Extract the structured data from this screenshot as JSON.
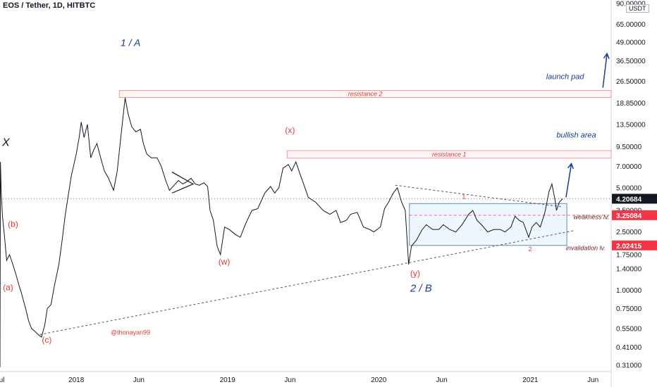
{
  "header": {
    "title": "EOS / Tether, 1D, HITBTC"
  },
  "currency_badge": "USDT",
  "chart_data": {
    "type": "line",
    "title": "EOS / Tether, 1D, HITBTC",
    "y_scale": "log",
    "ylim": [
      0.28,
      95
    ],
    "xlim": [
      "2017-07-01",
      "2021-07-15"
    ],
    "y_ticks": [
      "90.00000",
      "65.00000",
      "49.00000",
      "36.50000",
      "26.50000",
      "18.85000",
      "13.50000",
      "9.50000",
      "7.00000",
      "5.00000",
      "3.50000",
      "2.50000",
      "1.75000",
      "1.40000",
      "1.00000",
      "0.75000",
      "0.55000",
      "0.41000",
      "0.31000"
    ],
    "x_ticks": [
      {
        "label": "Jul",
        "date": "2017-07-01"
      },
      {
        "label": "2018",
        "date": "2018-01-01"
      },
      {
        "label": "Jun",
        "date": "2018-06-01"
      },
      {
        "label": "2019",
        "date": "2019-01-01"
      },
      {
        "label": "Jun",
        "date": "2019-06-01"
      },
      {
        "label": "2020",
        "date": "2020-01-01"
      },
      {
        "label": "Jun",
        "date": "2020-06-01"
      },
      {
        "label": "2021",
        "date": "2021-01-01"
      },
      {
        "label": "Jun",
        "date": "2021-06-01"
      }
    ],
    "series": [
      {
        "points": [
          [
            "2017-07-01",
            0.3
          ],
          [
            "2017-07-02",
            7.5
          ],
          [
            "2017-07-04",
            4.6
          ],
          [
            "2017-07-07",
            3.2
          ],
          [
            "2017-07-12",
            2.3
          ],
          [
            "2017-07-17",
            1.6
          ],
          [
            "2017-07-24",
            1.75
          ],
          [
            "2017-08-01",
            1.5
          ],
          [
            "2017-08-08",
            1.3
          ],
          [
            "2017-08-15",
            1.1
          ],
          [
            "2017-08-22",
            0.95
          ],
          [
            "2017-09-01",
            0.75
          ],
          [
            "2017-09-08",
            0.62
          ],
          [
            "2017-09-15",
            0.55
          ],
          [
            "2017-09-22",
            0.53
          ],
          [
            "2017-10-01",
            0.5
          ],
          [
            "2017-10-09",
            0.48
          ],
          [
            "2017-10-17",
            0.58
          ],
          [
            "2017-10-23",
            0.75
          ],
          [
            "2017-11-01",
            0.8
          ],
          [
            "2017-11-10",
            1.1
          ],
          [
            "2017-11-20",
            1.5
          ],
          [
            "2017-11-28",
            2.2
          ],
          [
            "2017-12-05",
            3.2
          ],
          [
            "2017-12-12",
            4.3
          ],
          [
            "2017-12-20",
            6.0
          ],
          [
            "2018-01-01",
            8.5
          ],
          [
            "2018-01-08",
            11.0
          ],
          [
            "2018-01-13",
            14.0
          ],
          [
            "2018-01-20",
            11.0
          ],
          [
            "2018-01-28",
            13.5
          ],
          [
            "2018-02-05",
            8.0
          ],
          [
            "2018-02-12",
            9.0
          ],
          [
            "2018-02-20",
            10.0
          ],
          [
            "2018-03-01",
            8.0
          ],
          [
            "2018-03-10",
            6.5
          ],
          [
            "2018-03-20",
            5.8
          ],
          [
            "2018-04-01",
            4.8
          ],
          [
            "2018-04-10",
            6.5
          ],
          [
            "2018-04-20",
            12.0
          ],
          [
            "2018-04-29",
            20.5
          ],
          [
            "2018-05-06",
            16.0
          ],
          [
            "2018-05-15",
            13.0
          ],
          [
            "2018-05-25",
            12.0
          ],
          [
            "2018-06-05",
            12.5
          ],
          [
            "2018-06-12",
            10.0
          ],
          [
            "2018-06-20",
            8.5
          ],
          [
            "2018-07-01",
            8.0
          ],
          [
            "2018-07-15",
            8.0
          ],
          [
            "2018-07-25",
            7.0
          ],
          [
            "2018-08-05",
            5.6
          ],
          [
            "2018-08-14",
            4.8
          ],
          [
            "2018-08-25",
            5.2
          ],
          [
            "2018-09-05",
            5.6
          ],
          [
            "2018-09-15",
            5.3
          ],
          [
            "2018-09-25",
            5.5
          ],
          [
            "2018-10-05",
            5.8
          ],
          [
            "2018-10-15",
            5.3
          ],
          [
            "2018-10-25",
            5.2
          ],
          [
            "2018-11-05",
            5.4
          ],
          [
            "2018-11-14",
            5.1
          ],
          [
            "2018-11-20",
            3.5
          ],
          [
            "2018-11-28",
            3.0
          ],
          [
            "2018-12-07",
            2.0
          ],
          [
            "2018-12-15",
            1.75
          ],
          [
            "2018-12-25",
            2.7
          ],
          [
            "2019-01-05",
            2.6
          ],
          [
            "2019-01-20",
            2.4
          ],
          [
            "2019-02-01",
            2.3
          ],
          [
            "2019-02-15",
            2.9
          ],
          [
            "2019-03-01",
            3.5
          ],
          [
            "2019-03-15",
            3.6
          ],
          [
            "2019-04-01",
            4.6
          ],
          [
            "2019-04-15",
            5.1
          ],
          [
            "2019-04-25",
            4.6
          ],
          [
            "2019-05-05",
            5.0
          ],
          [
            "2019-05-15",
            6.8
          ],
          [
            "2019-05-28",
            7.2
          ],
          [
            "2019-06-05",
            6.5
          ],
          [
            "2019-06-15",
            7.5
          ],
          [
            "2019-06-25",
            6.2
          ],
          [
            "2019-07-05",
            5.2
          ],
          [
            "2019-07-15",
            4.3
          ],
          [
            "2019-08-01",
            4.0
          ],
          [
            "2019-08-20",
            3.5
          ],
          [
            "2019-09-05",
            3.3
          ],
          [
            "2019-09-20",
            3.5
          ],
          [
            "2019-10-01",
            2.9
          ],
          [
            "2019-10-15",
            3.0
          ],
          [
            "2019-10-25",
            3.3
          ],
          [
            "2019-11-10",
            3.4
          ],
          [
            "2019-11-25",
            2.7
          ],
          [
            "2019-12-10",
            2.6
          ],
          [
            "2019-12-20",
            2.5
          ],
          [
            "2020-01-05",
            2.7
          ],
          [
            "2020-01-15",
            3.6
          ],
          [
            "2020-01-25",
            4.0
          ],
          [
            "2020-02-05",
            4.6
          ],
          [
            "2020-02-15",
            5.0
          ],
          [
            "2020-02-25",
            4.0
          ],
          [
            "2020-03-05",
            3.5
          ],
          [
            "2020-03-12",
            1.7
          ],
          [
            "2020-03-13",
            1.5
          ],
          [
            "2020-03-20",
            2.0
          ],
          [
            "2020-04-01",
            2.2
          ],
          [
            "2020-04-15",
            2.6
          ],
          [
            "2020-04-25",
            2.8
          ],
          [
            "2020-05-10",
            2.6
          ],
          [
            "2020-05-25",
            2.6
          ],
          [
            "2020-06-05",
            2.8
          ],
          [
            "2020-06-20",
            2.6
          ],
          [
            "2020-07-05",
            2.5
          ],
          [
            "2020-07-20",
            2.8
          ],
          [
            "2020-08-05",
            3.3
          ],
          [
            "2020-08-15",
            3.5
          ],
          [
            "2020-08-25",
            3.0
          ],
          [
            "2020-09-05",
            2.8
          ],
          [
            "2020-09-20",
            2.5
          ],
          [
            "2020-10-05",
            2.6
          ],
          [
            "2020-10-20",
            2.6
          ],
          [
            "2020-11-01",
            2.5
          ],
          [
            "2020-11-15",
            2.7
          ],
          [
            "2020-11-25",
            3.2
          ],
          [
            "2020-12-05",
            3.0
          ],
          [
            "2020-12-15",
            2.9
          ],
          [
            "2020-12-28",
            2.3
          ],
          [
            "2021-01-05",
            2.7
          ],
          [
            "2021-01-15",
            2.9
          ],
          [
            "2021-01-25",
            2.7
          ],
          [
            "2021-02-05",
            3.4
          ],
          [
            "2021-02-15",
            4.7
          ],
          [
            "2021-02-22",
            5.3
          ],
          [
            "2021-03-01",
            4.2
          ],
          [
            "2021-03-05",
            3.5
          ],
          [
            "2021-03-12",
            4.0
          ],
          [
            "2021-03-20",
            4.2
          ]
        ]
      }
    ],
    "last_price": "4.20684",
    "price_labels": [
      {
        "value": 3.25084,
        "text": "3.25084"
      },
      {
        "value": 2.02415,
        "text": "2.02415"
      }
    ],
    "zones": [
      {
        "label": "resistance 2",
        "x0": "2018-04-15",
        "x1": "2021-07-15",
        "y0": 20.6,
        "y1": 23.0
      },
      {
        "label": "resistance 1",
        "x0": "2019-05-25",
        "x1": "2021-07-15",
        "y0": 7.95,
        "y1": 8.95
      }
    ],
    "box": {
      "x0": "2020-03-15",
      "x1": "2021-03-30",
      "y0": 2.02415,
      "y1": 3.9
    },
    "trendlines": [
      {
        "from": [
          "2017-10-05",
          0.5
        ],
        "to": [
          "2021-04-15",
          2.55
        ],
        "style": "dashed"
      },
      {
        "from": [
          "2020-02-10",
          5.2
        ],
        "to": [
          "2021-03-20",
          3.7
        ],
        "style": "dashed"
      },
      {
        "from": [
          "2020-03-15",
          3.25084
        ],
        "to": [
          "2021-07-15",
          3.25084
        ],
        "style": "dashed-red"
      }
    ],
    "triangle": [
      [
        "2018-08-20",
        6.4
      ],
      [
        "2018-10-10",
        5.3
      ],
      [
        "2018-08-20",
        4.6
      ]
    ],
    "arrows": [
      {
        "from": [
          "2021-03-28",
          4.3
        ],
        "to": [
          "2021-04-10",
          7.3
        ]
      },
      {
        "from": [
          "2021-06-25",
          24.0
        ],
        "to": [
          "2021-07-05",
          41.0
        ]
      }
    ],
    "annotations": [
      {
        "text": "X",
        "x": "2017-07-06",
        "y": 9.6,
        "color": "#131722",
        "style": "italic",
        "size": 16
      },
      {
        "text": "(b)",
        "x": "2017-07-20",
        "y": 2.7,
        "color": "#e53935",
        "style": "normal",
        "size": 12
      },
      {
        "text": "(a)",
        "x": "2017-07-08",
        "y": 1.0,
        "color": "#e53935",
        "style": "normal",
        "size": 12
      },
      {
        "text": "(c)",
        "x": "2017-10-10",
        "y": 0.44,
        "color": "#e53935",
        "style": "normal",
        "size": 12
      },
      {
        "text": "1 / A",
        "x": "2018-04-18",
        "y": 46.0,
        "color": "#1a3c8f",
        "style": "italic",
        "size": 14
      },
      {
        "text": "(w)",
        "x": "2018-12-10",
        "y": 1.5,
        "color": "#e53935",
        "style": "normal",
        "size": 12
      },
      {
        "text": "(x)",
        "x": "2019-05-20",
        "y": 11.8,
        "color": "#e53935",
        "style": "normal",
        "size": 12
      },
      {
        "text": "(y)",
        "x": "2020-03-17",
        "y": 1.25,
        "color": "#e53935",
        "style": "normal",
        "size": 12
      },
      {
        "text": "2 / B",
        "x": "2020-03-17",
        "y": 0.98,
        "color": "#1a3c8f",
        "style": "italic",
        "size": 15
      },
      {
        "text": "1",
        "x": "2020-07-20",
        "y": 4.2,
        "color": "#e53935",
        "style": "normal",
        "size": 9
      },
      {
        "text": "2",
        "x": "2020-12-27",
        "y": 1.85,
        "color": "#e53935",
        "style": "normal",
        "size": 9
      },
      {
        "text": "launch pad",
        "x": "2021-02-08",
        "y": 27.5,
        "color": "#1a3c8f",
        "style": "italic",
        "size": 11
      },
      {
        "text": "bullish area",
        "x": "2021-03-05",
        "y": 11.0,
        "color": "#1a3c8f",
        "style": "italic",
        "size": 11
      },
      {
        "text": "weakness lv.",
        "x": "2021-04-15",
        "y": 3.05,
        "color": "#6d1b1b",
        "style": "italic",
        "size": 9
      },
      {
        "text": "invalidation lv.",
        "x": "2021-03-28",
        "y": 1.88,
        "color": "#6d1b1b",
        "style": "italic",
        "size": 9
      },
      {
        "text": "@thonayan99",
        "x": "2018-03-25",
        "y": 0.5,
        "color": "#e53935",
        "style": "normal",
        "size": 9
      }
    ]
  }
}
